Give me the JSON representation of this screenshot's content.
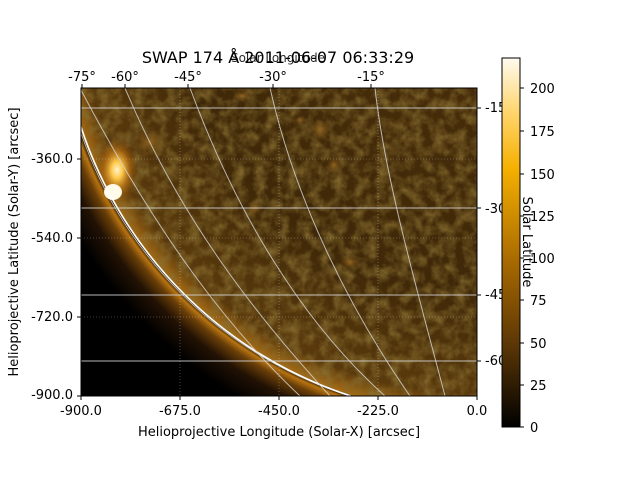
{
  "figure": {
    "title": "SWAP 174 Å 2011-06-07 06:33:29",
    "overlay_title": "Solar Longitude"
  },
  "image": {
    "colormap": "SWAP 174 (black → brown → orange → yellow → white)",
    "description_elements": [
      "solar limb",
      "coronal off-limb glow",
      "active region bright loops",
      "quiet-sun disk texture"
    ]
  },
  "axes": {
    "xlabel": "Helioprojective Longitude (Solar-X) [arcsec]",
    "ylabel": "Helioprojective Latitude (Solar-Y) [arcsec]",
    "xlim": [
      -900,
      0
    ],
    "ylim": [
      -900,
      -180
    ],
    "x_ticks": [
      "-900.0",
      "-675.0",
      "-450.0",
      "-225.0",
      "0.0"
    ],
    "y_ticks": [
      "-360.0",
      "-540.0",
      "-720.0",
      "-900.0"
    ],
    "top_ticks": [
      "-75°",
      "-60°",
      "-45°",
      "-30°",
      "-15°"
    ],
    "right_ticks": [
      "-15",
      "-30",
      "-45",
      "-60"
    ],
    "right_label": "Solar Latitude"
  },
  "colorbar": {
    "ticks": [
      "0",
      "25",
      "50",
      "75",
      "100",
      "125",
      "150",
      "175",
      "200"
    ],
    "range": [
      0,
      220
    ]
  },
  "chart_data": {
    "type": "heatmap",
    "title": "SWAP 174 Å 2011-06-07 06:33:29",
    "xlabel": "Helioprojective Longitude (Solar-X) [arcsec]",
    "ylabel": "Helioprojective Latitude (Solar-Y) [arcsec]",
    "xlim": [
      -900,
      0
    ],
    "ylim": [
      -900,
      -180
    ],
    "x_ticks": [
      -900,
      -675,
      -450,
      -225,
      0
    ],
    "y_ticks": [
      -360,
      -540,
      -720,
      -900
    ],
    "colorbar_range": [
      0,
      220
    ],
    "colorbar_ticks": [
      0,
      25,
      50,
      75,
      100,
      125,
      150,
      175,
      200
    ],
    "grid_longitudes_deg": [
      -75,
      -60,
      -45,
      -30,
      -15
    ],
    "grid_latitudes_deg": [
      -15,
      -30,
      -45,
      -60
    ]
  }
}
